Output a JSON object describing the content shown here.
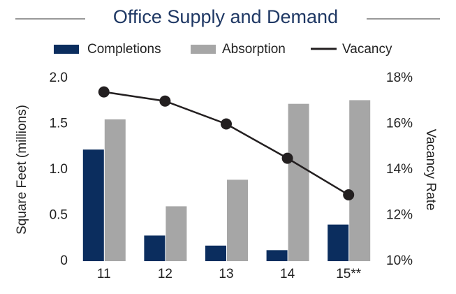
{
  "chart_data": {
    "type": "bar",
    "title": "Office Supply and Demand",
    "categories": [
      "11",
      "12",
      "13",
      "14",
      "15**"
    ],
    "series": [
      {
        "name": "Completions",
        "color": "#0b2d5e",
        "values": [
          1.22,
          0.28,
          0.17,
          0.12,
          0.4
        ]
      },
      {
        "name": "Absorption",
        "color": "#a6a6a6",
        "values": [
          1.55,
          0.6,
          0.89,
          1.72,
          1.76
        ]
      },
      {
        "name": "Vacancy",
        "color": "#231f20",
        "type": "line",
        "axis": "y2",
        "values": [
          17.4,
          17.0,
          16.0,
          14.5,
          12.9
        ]
      }
    ],
    "ylabel": "Square Feet (millions)",
    "y2label": "Vacancy Rate",
    "ylim": [
      0,
      2
    ],
    "yticks": [
      0,
      0.5,
      {
        "value": 1,
        "label": "1.0"
      },
      1.5,
      {
        "value": 2,
        "label": "2.0"
      }
    ],
    "y2lim": [
      10,
      18
    ],
    "y2ticks": [
      {
        "value": 10,
        "label": "10%"
      },
      {
        "value": 12,
        "label": "12%"
      },
      {
        "value": 14,
        "label": "14%"
      },
      {
        "value": 16,
        "label": "16%"
      },
      {
        "value": 18,
        "label": "18%"
      }
    ],
    "grid": false
  }
}
